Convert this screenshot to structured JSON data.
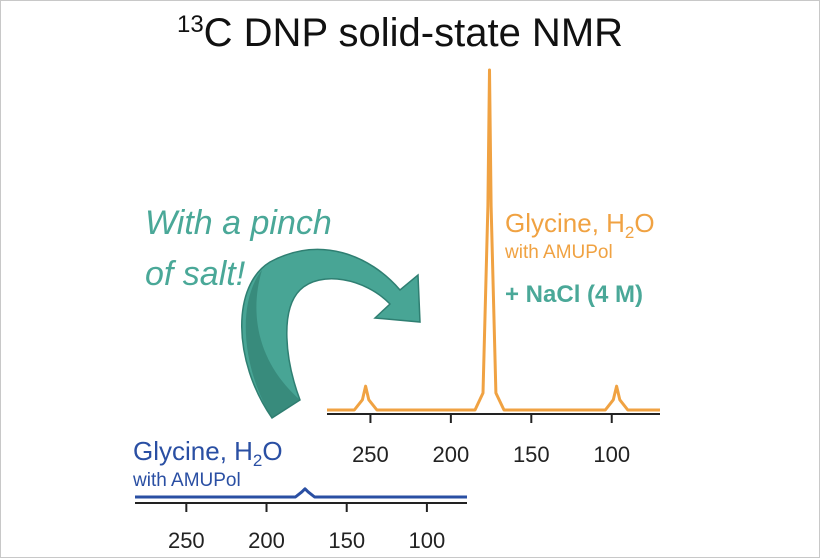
{
  "title": {
    "superscript": "13",
    "main": "C DNP solid-state NMR"
  },
  "annotation": [
    "With a pinch",
    "of salt!"
  ],
  "chart_data": [
    {
      "type": "line",
      "label": {
        "name": [
          "Glycine, H",
          "2",
          "O"
        ],
        "detail": "with AMUPol",
        "extra": "+ NaCl (4 M)"
      },
      "color": "#f0a242",
      "x": [
        277,
        260,
        255,
        253,
        251,
        246,
        185,
        180,
        177,
        176,
        175,
        172,
        167,
        104,
        99,
        97,
        95,
        90,
        70
      ],
      "values": [
        0,
        0,
        3,
        7,
        3,
        0,
        0,
        5,
        60,
        100,
        60,
        5,
        0,
        0,
        3,
        7,
        3,
        0,
        0
      ],
      "xlim": [
        277,
        70
      ],
      "ylim": [
        0,
        100
      ],
      "xticks": [
        250,
        200,
        150,
        100
      ]
    },
    {
      "type": "line",
      "label": {
        "name": [
          "Glycine, H",
          "2",
          "O"
        ],
        "detail": "with AMUPol"
      },
      "color": "#2a4fa3",
      "x": [
        282,
        182,
        178,
        176,
        174,
        170,
        75
      ],
      "values": [
        0,
        0,
        1.5,
        2.4,
        1.5,
        0,
        0
      ],
      "xlim": [
        282,
        75
      ],
      "ylim": [
        0,
        100
      ],
      "xticks": [
        250,
        200,
        150,
        100
      ]
    }
  ]
}
